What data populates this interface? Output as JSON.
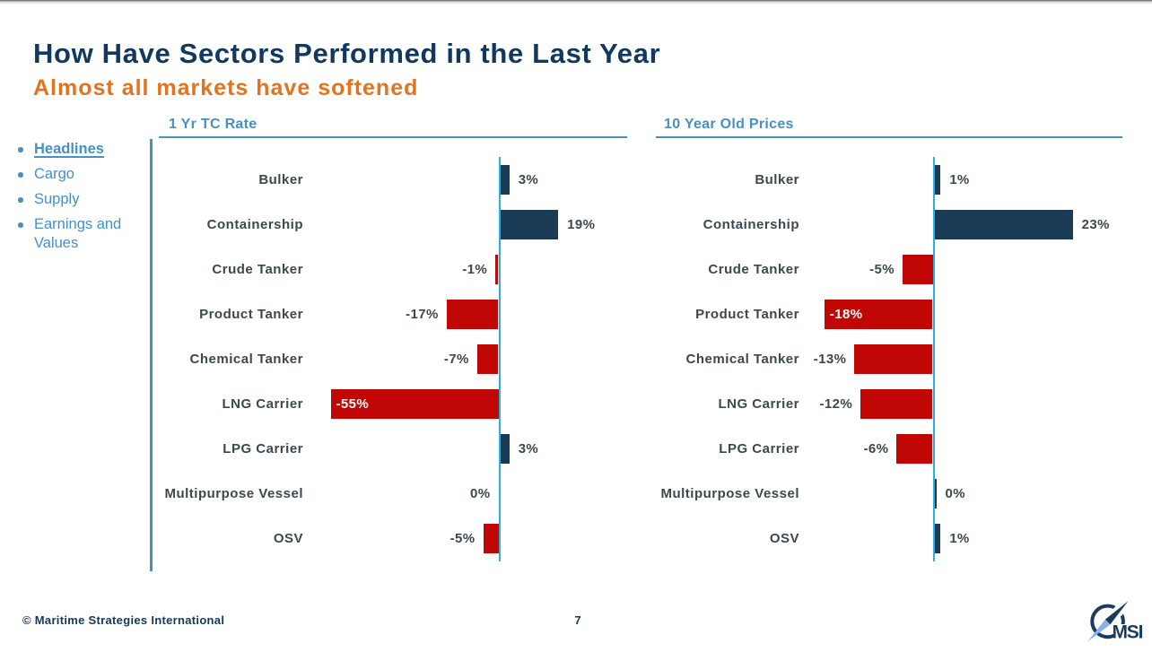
{
  "slide": {
    "title": "How Have Sectors Performed in the Last Year",
    "subtitle": "Almost all markets have softened",
    "footer": {
      "copyright": "© Maritime Strategies International",
      "page_number": "7"
    },
    "logo": {
      "text": "MSI"
    }
  },
  "sidebar": {
    "items": [
      {
        "label": "Headlines",
        "active": true
      },
      {
        "label": "Cargo",
        "active": false
      },
      {
        "label": "Supply",
        "active": false
      },
      {
        "label": "Earnings and Values",
        "active": false
      }
    ]
  },
  "colors": {
    "title_navy": "#11395f",
    "subtitle_orange": "#e2731f",
    "steel_blue": "#4690c4",
    "axis_cyan": "#29b0e3",
    "bar_positive_navy": "#1a3b55",
    "bar_negative_red": "#c10606",
    "chart_label_slate": "#3d484d",
    "logo_light_blue": "#84b5e6"
  },
  "chart_data": [
    {
      "type": "bar",
      "orientation": "horizontal",
      "title": "1 Yr TC Rate",
      "unit": "%",
      "categories": [
        "Bulker",
        "Containership",
        "Crude Tanker",
        "Product Tanker",
        "Chemical Tanker",
        "LNG Carrier",
        "LPG Carrier",
        "Multipurpose Vessel",
        "OSV"
      ],
      "values": [
        3,
        19,
        -1,
        -17,
        -7,
        -55,
        3,
        0,
        -5
      ],
      "labels": [
        "3%",
        "19%",
        "-1%",
        "-17%",
        "-7%",
        "-55%",
        "3%",
        "0%",
        "-5%"
      ],
      "xlim": [
        -64,
        42
      ],
      "grid": false,
      "legend": false
    },
    {
      "type": "bar",
      "orientation": "horizontal",
      "title": "10 Year Old Prices",
      "unit": "%",
      "categories": [
        "Bulker",
        "Containership",
        "Crude Tanker",
        "Product Tanker",
        "Chemical Tanker",
        "LNG Carrier",
        "LPG Carrier",
        "Multipurpose Vessel",
        "OSV"
      ],
      "values": [
        1,
        23,
        -5,
        -18,
        -13,
        -12,
        -6,
        0.3,
        1
      ],
      "labels": [
        "1%",
        "23%",
        "-5%",
        "-18%",
        "-13%",
        "-12%",
        "-6%",
        "0%",
        "1%"
      ],
      "xlim": [
        -22,
        36
      ],
      "grid": false,
      "legend": false
    }
  ]
}
